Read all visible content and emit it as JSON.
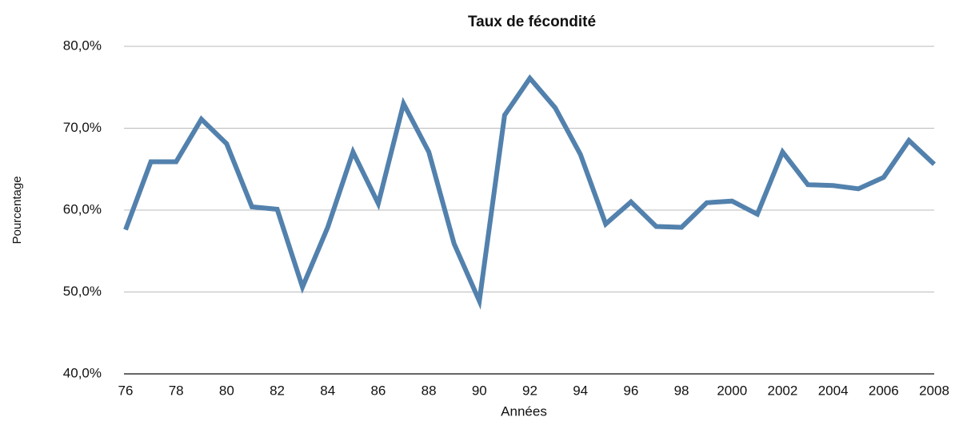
{
  "chart_data": {
    "type": "line",
    "title": "Taux de fécondité",
    "xlabel": "Années",
    "ylabel": "Pourcentage",
    "categories": [
      "76",
      null,
      "78",
      null,
      "80",
      null,
      "82",
      null,
      "84",
      null,
      "86",
      null,
      "88",
      null,
      "90",
      null,
      "92",
      null,
      "94",
      null,
      "96",
      null,
      "98",
      null,
      "2000",
      null,
      "2002",
      null,
      "2004",
      null,
      "2006",
      null,
      "2008"
    ],
    "values": [
      57.6,
      65.9,
      65.9,
      71.1,
      68.1,
      60.4,
      60.1,
      50.6,
      57.9,
      67.1,
      60.8,
      73.0,
      67.1,
      55.9,
      48.9,
      71.6,
      76.1,
      72.5,
      66.8,
      58.3,
      61.0,
      58.0,
      57.9,
      60.9,
      61.1,
      59.5,
      67.1,
      63.1,
      63.0,
      62.6,
      64.0,
      68.5,
      65.6
    ],
    "color": "#5281ad",
    "ylim": [
      40,
      80
    ],
    "yticks": [
      {
        "value": 40,
        "label": "40,0%"
      },
      {
        "value": 50,
        "label": "50,0%"
      },
      {
        "value": 60,
        "label": "60,0%"
      },
      {
        "value": 70,
        "label": "70,0%"
      },
      {
        "value": 80,
        "label": "80,0%"
      }
    ],
    "grid": true
  }
}
